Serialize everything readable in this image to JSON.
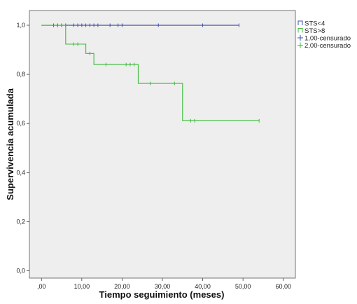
{
  "chart_data": {
    "type": "line",
    "xlabel": "Tiempo seguimiento (meses)",
    "ylabel": "Supervivencia acumulada",
    "xlim": [
      -3,
      63
    ],
    "ylim": [
      -0.03,
      1.06
    ],
    "x_ticks": [
      {
        "value": 0,
        "label": ",00"
      },
      {
        "value": 10,
        "label": "10,00"
      },
      {
        "value": 20,
        "label": "20,00"
      },
      {
        "value": 30,
        "label": "30,00"
      },
      {
        "value": 40,
        "label": "40,00"
      },
      {
        "value": 50,
        "label": "50,00"
      },
      {
        "value": 60,
        "label": "60,00"
      }
    ],
    "y_ticks": [
      {
        "value": 0.0,
        "label": "0,0"
      },
      {
        "value": 0.2,
        "label": "0,2"
      },
      {
        "value": 0.4,
        "label": "0,4"
      },
      {
        "value": 0.6,
        "label": "0,6"
      },
      {
        "value": 0.8,
        "label": "0,8"
      },
      {
        "value": 1.0,
        "label": "1,0"
      }
    ],
    "grid": false,
    "background_color": "#eeeeee",
    "legend_position": "top-right",
    "legend": [
      {
        "label": "STS<4",
        "kind": "line",
        "color": "#3b4fa8"
      },
      {
        "label": "STS>8",
        "kind": "line",
        "color": "#3dbb3a"
      },
      {
        "label": "1,00-censurado",
        "kind": "cross",
        "color": "#3b4fa8"
      },
      {
        "label": "2,00-censurado",
        "kind": "cross",
        "color": "#3dbb3a"
      }
    ],
    "series": [
      {
        "name": "STS<4",
        "color": "#3b4fa8",
        "steps": [
          [
            0,
            1.0
          ],
          [
            49,
            1.0
          ]
        ],
        "censored": [
          [
            3,
            1.0
          ],
          [
            4,
            1.0
          ],
          [
            5,
            1.0
          ],
          [
            6,
            1.0
          ],
          [
            8,
            1.0
          ],
          [
            9,
            1.0
          ],
          [
            10,
            1.0
          ],
          [
            11,
            1.0
          ],
          [
            12,
            1.0
          ],
          [
            13,
            1.0
          ],
          [
            14,
            1.0
          ],
          [
            17,
            1.0
          ],
          [
            19,
            1.0
          ],
          [
            20,
            1.0
          ],
          [
            29,
            1.0
          ],
          [
            40,
            1.0
          ],
          [
            49,
            1.0
          ]
        ]
      },
      {
        "name": "STS>8",
        "color": "#3dbb3a",
        "steps": [
          [
            0,
            1.0
          ],
          [
            6,
            0.923
          ],
          [
            11,
            0.885
          ],
          [
            13,
            0.84
          ],
          [
            24,
            0.763
          ],
          [
            35,
            0.611
          ],
          [
            54,
            0.611
          ]
        ],
        "censored": [
          [
            8,
            0.923
          ],
          [
            9,
            0.923
          ],
          [
            12,
            0.885
          ],
          [
            16,
            0.84
          ],
          [
            21,
            0.84
          ],
          [
            22,
            0.84
          ],
          [
            23,
            0.84
          ],
          [
            27,
            0.763
          ],
          [
            33,
            0.763
          ],
          [
            37,
            0.611
          ],
          [
            38,
            0.611
          ],
          [
            54,
            0.611
          ]
        ]
      }
    ]
  }
}
